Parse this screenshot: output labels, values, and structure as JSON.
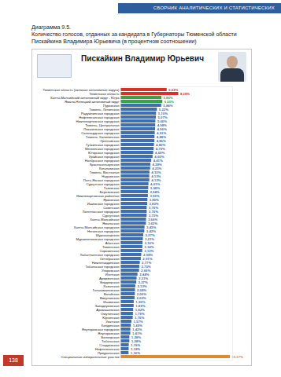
{
  "header": "СБОРНИК АНАЛИТИЧЕСКИХ И СТАТИСТИЧЕСКИХ МАТЕРИАЛОВ",
  "caption": {
    "number": "Диаграмма 9.5.",
    "text": "Количество голосов, отданных за кандидата в Губернаторы Тюменской области Пискайкина Владимира Юрьевича (в процентном соотношении)"
  },
  "page_number": "138",
  "chart_data": {
    "type": "bar",
    "title": "Пискайкин Владимир Юрьевич",
    "orientation": "horizontal",
    "data_labels": true,
    "grid": false,
    "tick_labels": "y",
    "xlim": [
      0,
      16
    ],
    "xticks": [],
    "categories": [
      "Тюменская область (включая автономные округа)",
      "Тюменская область",
      "Ханты-Мансийский автономный округ - Югра",
      "Ямало-Ненецкий автономный округ",
      "Пуровская",
      "Тюмень, Ленинская",
      "Радужнинская городская",
      "Нефтеюганская городская",
      "Нижневартовская городская",
      "Тюмень, Центральная",
      "Покачевская городская",
      "Салехардская городская",
      "Тюмень, Калининская",
      "Уренгойская",
      "Губкинская городская",
      "Мегионская городская",
      "Югорская городская",
      "Урайская городская",
      "Ноябрьская городская",
      "Красноселькупская",
      "Когалымская",
      "Тюмень, Восточная",
      "Надымская",
      "Пыть-Яхская городская",
      "Сургутская городская",
      "Тазовская",
      "Березовская",
      "Нижневартовская районная",
      "Ярковская",
      "Ишимская городская",
      "Советская",
      "Лангепасская городская",
      "Сургутская",
      "Ханты-Мансийская",
      "Ямальская",
      "Ханты-Мансийская городская",
      "Няганская городская",
      "Шурышкарская",
      "Муравленковская городская",
      "Абатская",
      "Тюменская",
      "Сорокинская",
      "Лабытнангская городская",
      "Октябрьская",
      "Нижнетавдинская",
      "Тобольская городская",
      "Упоровская",
      "Исетская",
      "Армизонская",
      "Бердюжская",
      "Казанская",
      "Голышмановская",
      "Вагайская",
      "Викуловская",
      "Ишимская",
      "Заводоуковская",
      "Аромашевская",
      "Омутинская",
      "Юргинская",
      "Уватская",
      "Кондинская",
      "Ялуторовская городская",
      "Ялуторовская",
      "Белоярская",
      "Тобольская",
      "Сладковская",
      "Нефтеюганская",
      "Приуральская",
      "Специальные избирательные участки"
    ],
    "values": [
      6.62,
      8.28,
      5.86,
      6.0,
      5.84,
      5.22,
      5.1,
      5.07,
      5.0,
      4.98,
      4.96,
      4.91,
      4.88,
      4.86,
      4.8,
      4.76,
      4.69,
      4.6,
      4.41,
      4.28,
      4.25,
      4.15,
      4.13,
      4.13,
      4.01,
      3.98,
      3.94,
      3.93,
      3.86,
      3.83,
      3.76,
      3.76,
      3.75,
      3.66,
      3.65,
      3.45,
      3.42,
      3.27,
      3.21,
      3.16,
      3.14,
      3.12,
      2.98,
      2.91,
      2.77,
      2.7,
      2.66,
      2.44,
      2.31,
      2.27,
      2.13,
      2.08,
      2.06,
      2.02,
      1.9,
      1.89,
      1.82,
      1.79,
      1.76,
      1.57,
      1.49,
      1.42,
      1.41,
      1.28,
      1.28,
      1.19,
      1.18,
      1.16,
      15.67
    ],
    "value_labels": [
      "6,62%",
      "8,28%",
      "5,86%",
      "6,00%",
      "5,84%",
      "5,22%",
      "5,10%",
      "5,07%",
      "5,00%",
      "4,98%",
      "4,96%",
      "4,91%",
      "4,88%",
      "4,86%",
      "4,80%",
      "4,76%",
      "4,69%",
      "4,60%",
      "4,41%",
      "4,28%",
      "4,25%",
      "4,15%",
      "4,13%",
      "4,13%",
      "4,01%",
      "3,98%",
      "3,94%",
      "3,93%",
      "3,86%",
      "3,83%",
      "3,76%",
      "3,76%",
      "3,75%",
      "3,66%",
      "3,65%",
      "3,45%",
      "3,42%",
      "3,27%",
      "3,21%",
      "3,16%",
      "3,14%",
      "3,12%",
      "2,98%",
      "2,91%",
      "2,77%",
      "2,70%",
      "2,66%",
      "2,44%",
      "2,31%",
      "2,27%",
      "2,13%",
      "2,08%",
      "2,06%",
      "2,02%",
      "1,90%",
      "1,89%",
      "1,82%",
      "1,79%",
      "1,76%",
      "1,57%",
      "1,49%",
      "1,42%",
      "1,41%",
      "1,28%",
      "1,28%",
      "1,19%",
      "1,18%",
      "1,16%",
      "15,67%"
    ],
    "colors": [
      "#d9302c",
      "#d9302c",
      "#3aa346",
      "#3aa346",
      "#3f6fb0",
      "#3f6fb0",
      "#3f6fb0",
      "#3f6fb0",
      "#3f6fb0",
      "#3f6fb0",
      "#3f6fb0",
      "#3f6fb0",
      "#3f6fb0",
      "#3f6fb0",
      "#3f6fb0",
      "#3f6fb0",
      "#3f6fb0",
      "#3f6fb0",
      "#3f6fb0",
      "#3f6fb0",
      "#3f6fb0",
      "#3f6fb0",
      "#3f6fb0",
      "#3f6fb0",
      "#3f6fb0",
      "#3f6fb0",
      "#3f6fb0",
      "#3f6fb0",
      "#3f6fb0",
      "#3f6fb0",
      "#3f6fb0",
      "#3f6fb0",
      "#3f6fb0",
      "#3f6fb0",
      "#3f6fb0",
      "#3f6fb0",
      "#3f6fb0",
      "#3f6fb0",
      "#3f6fb0",
      "#3f6fb0",
      "#3f6fb0",
      "#3f6fb0",
      "#3f6fb0",
      "#3f6fb0",
      "#3f6fb0",
      "#3f6fb0",
      "#3f6fb0",
      "#3f6fb0",
      "#3f6fb0",
      "#3f6fb0",
      "#3f6fb0",
      "#3f6fb0",
      "#3f6fb0",
      "#3f6fb0",
      "#3f6fb0",
      "#3f6fb0",
      "#3f6fb0",
      "#3f6fb0",
      "#3f6fb0",
      "#3f6fb0",
      "#3f6fb0",
      "#3f6fb0",
      "#3f6fb0",
      "#3f6fb0",
      "#3f6fb0",
      "#3f6fb0",
      "#3f6fb0",
      "#3f6fb0",
      "#e08a2c"
    ]
  }
}
